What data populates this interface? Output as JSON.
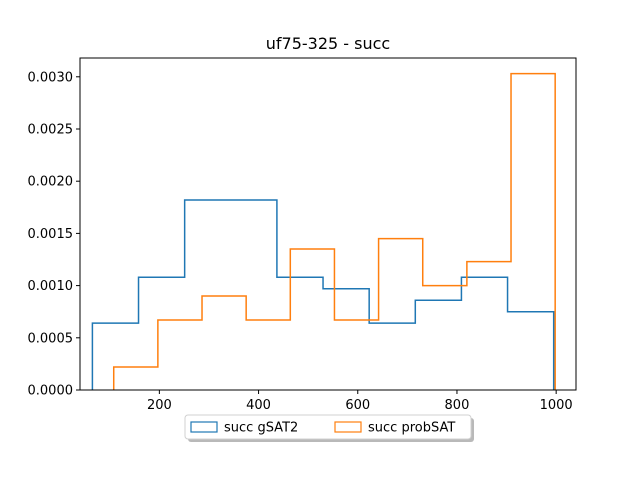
{
  "chart_data": {
    "type": "step-histogram",
    "title": "uf75-325 - succ",
    "xlabel": "",
    "ylabel": "",
    "xlim": [
      40,
      1040
    ],
    "ylim": [
      0,
      0.00318
    ],
    "x_ticks": [
      200,
      400,
      600,
      800,
      1000
    ],
    "y_ticks": [
      0.0,
      0.0005,
      0.001,
      0.0015,
      0.002,
      0.0025,
      0.003
    ],
    "y_tick_labels": [
      "0.0000",
      "0.0005",
      "0.0010",
      "0.0015",
      "0.0020",
      "0.0025",
      "0.0030"
    ],
    "grid": false,
    "legend": {
      "placement": "bottom-center",
      "columns": 2
    },
    "series": [
      {
        "name": "succ gSAT2",
        "color": "#1f77b4",
        "bin_edges": [
          65,
          158,
          251,
          344,
          437,
          530,
          623,
          716,
          809,
          902,
          995
        ],
        "values": [
          0.00064,
          0.00108,
          0.00182,
          0.00182,
          0.00108,
          0.00097,
          0.00064,
          0.00086,
          0.00108,
          0.00075
        ]
      },
      {
        "name": "succ probSAT",
        "color": "#ff7f0e",
        "bin_edges": [
          108,
          197,
          286,
          375,
          464,
          553,
          642,
          731,
          820,
          909,
          998
        ],
        "values": [
          0.00022,
          0.00067,
          0.0009,
          0.00067,
          0.00135,
          0.00067,
          0.00145,
          0.001,
          0.00123,
          0.00303
        ]
      }
    ]
  }
}
